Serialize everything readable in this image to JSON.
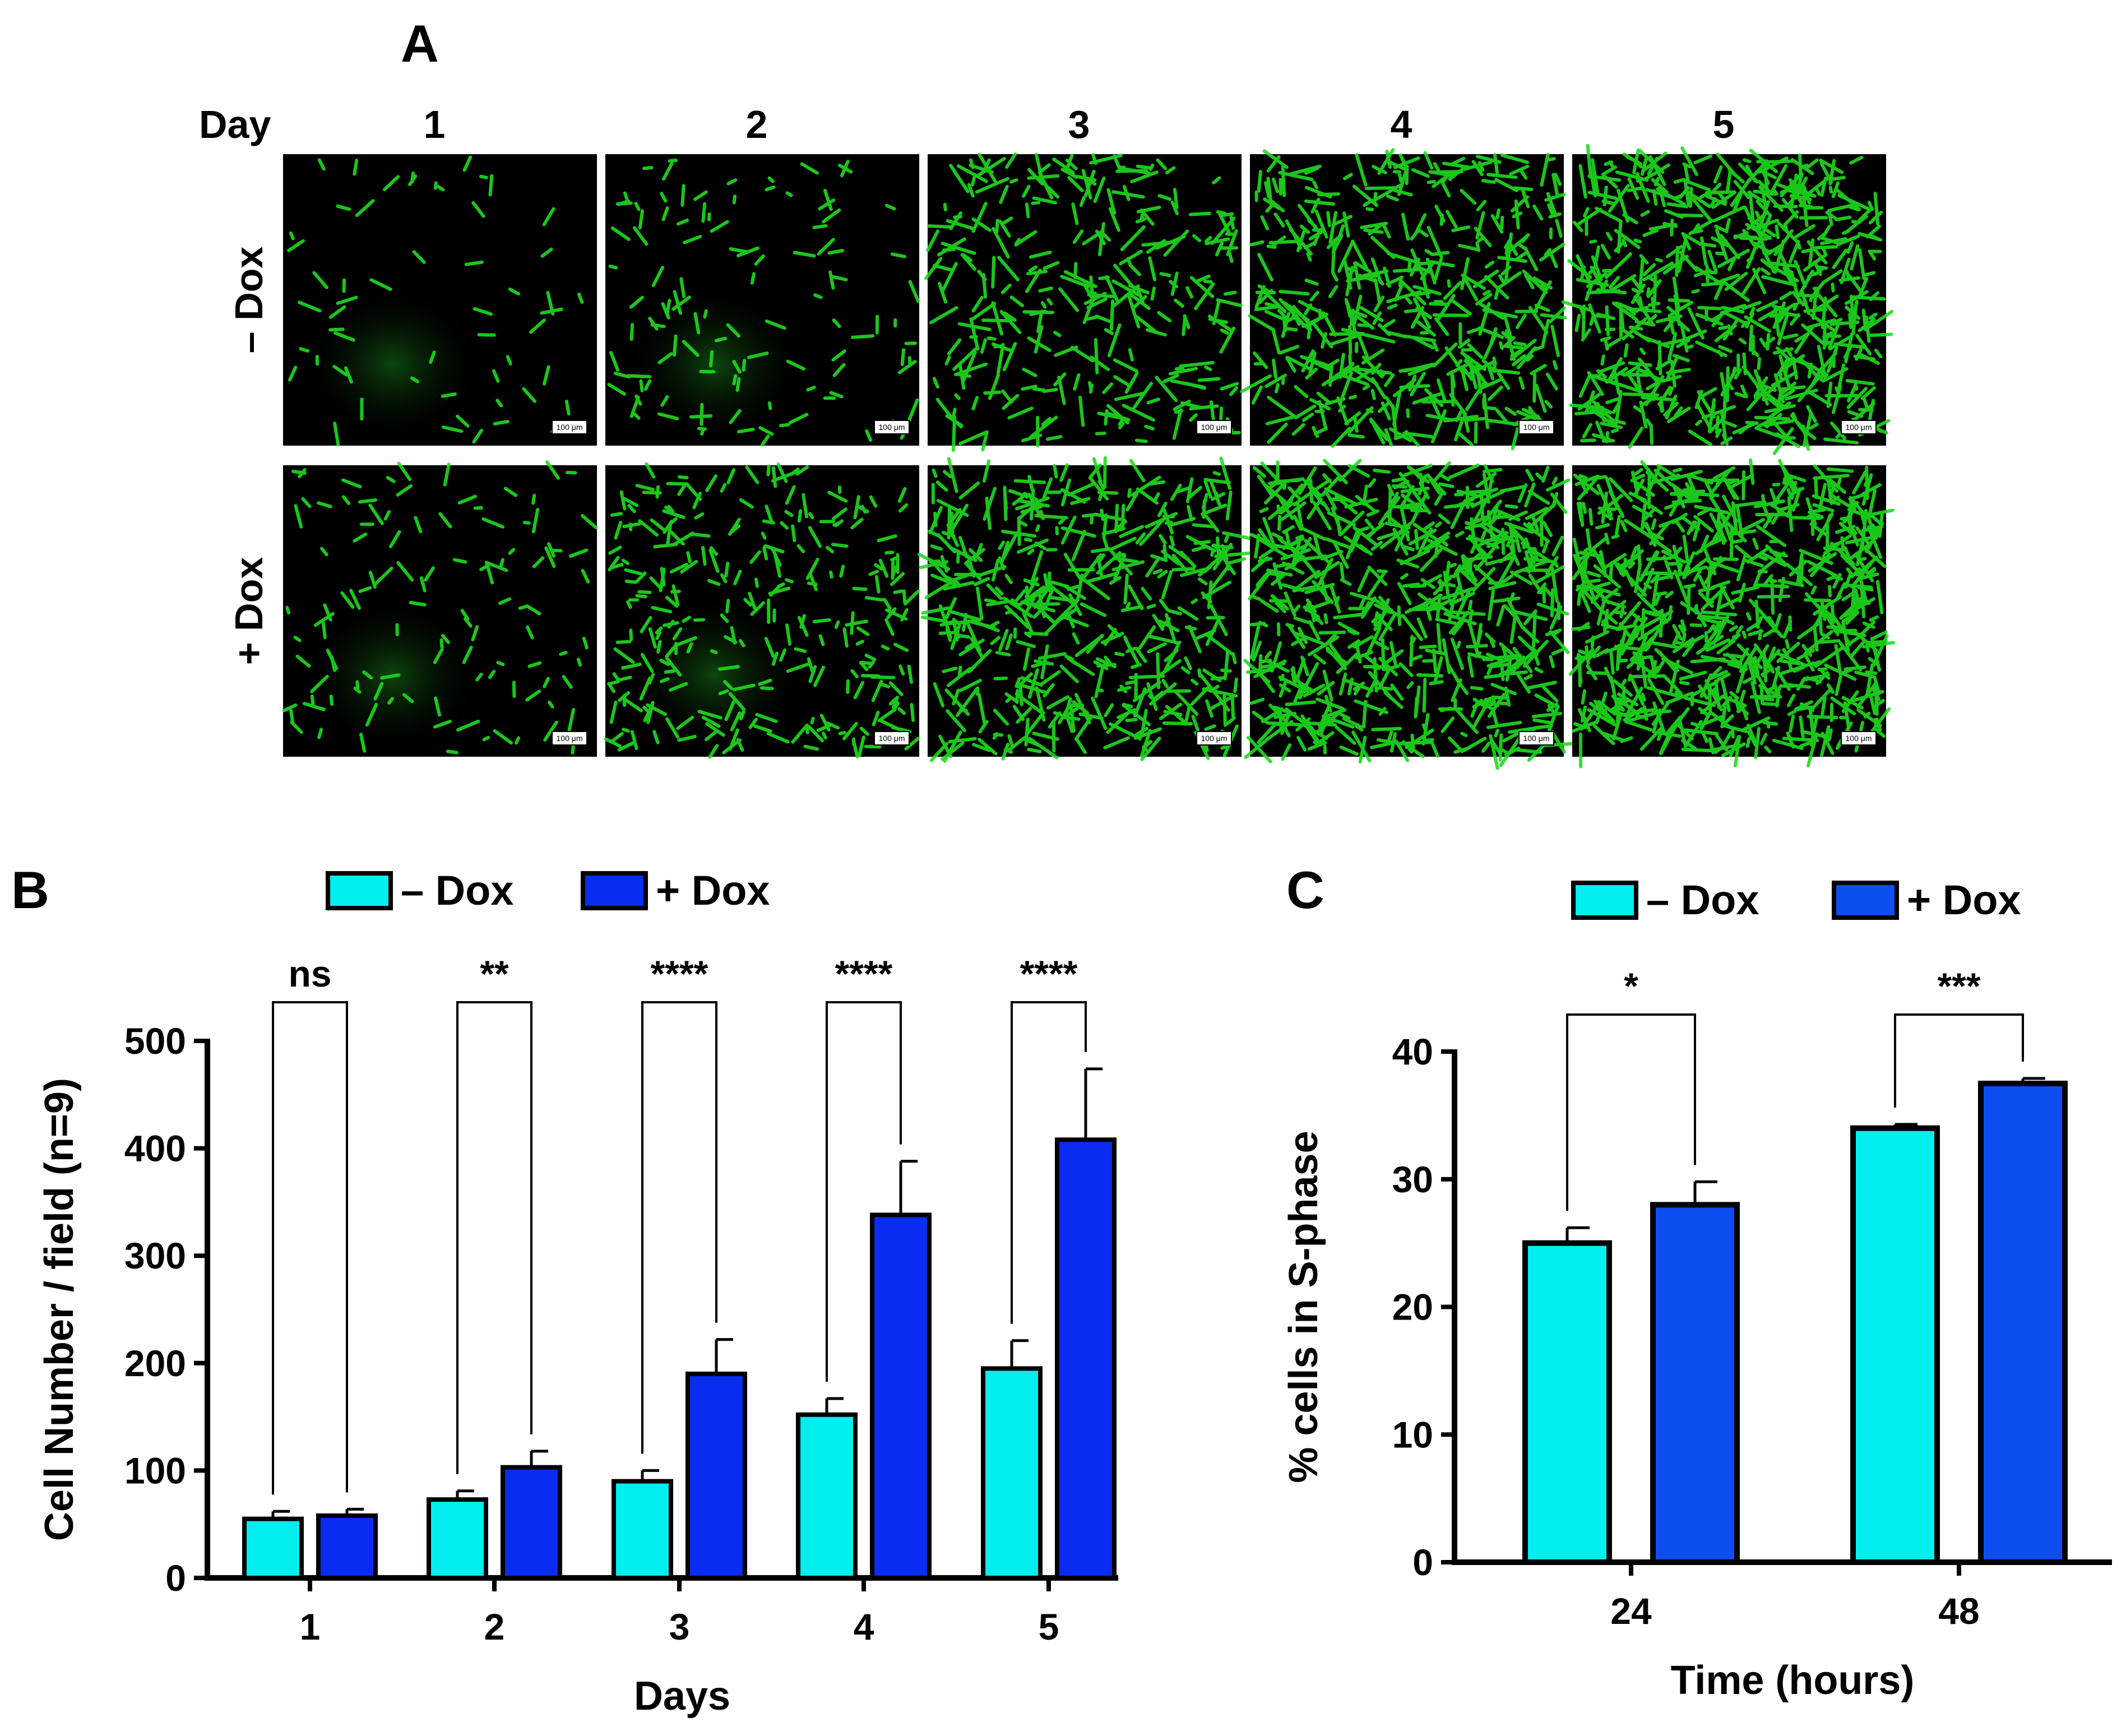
{
  "panel_a": {
    "label": "A",
    "day_header": "Day",
    "days": [
      "1",
      "2",
      "3",
      "4",
      "5"
    ],
    "rows": [
      "– Dox",
      "+ Dox"
    ],
    "scale_bar": "100 μm",
    "image_color": "#1edc1e"
  },
  "chart_data": [
    {
      "panel": "B",
      "type": "bar",
      "title": "",
      "xlabel": "Days",
      "ylabel": "Cell Number / field (n=9)",
      "categories": [
        "1",
        "2",
        "3",
        "4",
        "5"
      ],
      "ylim": [
        0,
        500
      ],
      "yticks": [
        "0",
        "100",
        "200",
        "300",
        "400",
        "500"
      ],
      "legend": [
        "– Dox",
        "+ Dox"
      ],
      "series": [
        {
          "name": "– Dox",
          "color": "#00eeee",
          "values": [
            55,
            73,
            90,
            152,
            195
          ],
          "errors": [
            7,
            8,
            10,
            15,
            26
          ]
        },
        {
          "name": "+ Dox",
          "color": "#0a2cf0",
          "values": [
            58,
            103,
            190,
            338,
            408
          ],
          "errors": [
            6,
            15,
            32,
            50,
            66
          ]
        }
      ],
      "significance": [
        "ns",
        "**",
        "****",
        "****",
        "****"
      ]
    },
    {
      "panel": "C",
      "type": "bar",
      "title": "",
      "xlabel": "Time (hours)",
      "ylabel": "% cells in S-phase",
      "categories": [
        "24",
        "48"
      ],
      "ylim": [
        0,
        40
      ],
      "yticks": [
        "0",
        "10",
        "20",
        "30",
        "40"
      ],
      "legend": [
        "– Dox",
        "+ Dox"
      ],
      "series": [
        {
          "name": "– Dox",
          "color": "#00eeee",
          "values": [
            25,
            34
          ],
          "errors": [
            1.2,
            0.3
          ]
        },
        {
          "name": "+ Dox",
          "color": "#0c4ef0",
          "values": [
            28,
            37.5
          ],
          "errors": [
            1.8,
            0.4
          ]
        }
      ],
      "significance": [
        "*",
        "***"
      ]
    }
  ]
}
